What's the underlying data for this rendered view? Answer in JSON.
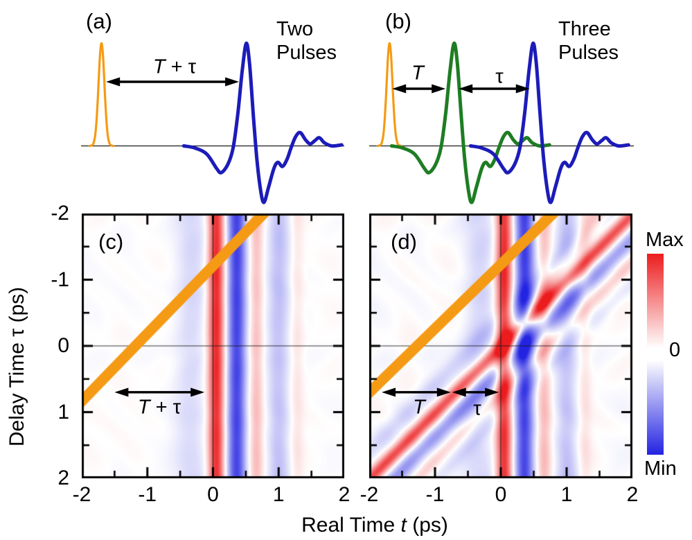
{
  "figure": {
    "panels": {
      "a": "(a)",
      "b": "(b)",
      "c": "(c)",
      "d": "(d)"
    },
    "pulse_titles": {
      "two_line1": "Two",
      "two_line2": "Pulses",
      "three_line1": "Three",
      "three_line2": "Pulses"
    },
    "labels": {
      "T": "T",
      "plus_tau": " + τ",
      "tau": "τ"
    },
    "x_axis": {
      "title_prefix": "Real Time ",
      "title_var": "t",
      "title_suffix": " (ps)",
      "ticks": [
        "-2",
        "-1",
        "0",
        "1",
        "2"
      ],
      "tick_values": [
        -2,
        -1,
        0,
        1,
        2
      ],
      "range": [
        -2,
        2
      ]
    },
    "y_axis": {
      "title_prefix": "Delay Time ",
      "title_var": "τ",
      "title_suffix": " (ps)",
      "ticks": [
        "-2",
        "-1",
        "0",
        "1",
        "2"
      ],
      "tick_values": [
        -2,
        -1,
        0,
        1,
        2
      ],
      "range": [
        -2,
        2
      ],
      "inverted": true
    },
    "colorbar": {
      "max_label": "Max",
      "zero_label": "0",
      "min_label": "Min",
      "top_color": "#ec1c1e",
      "mid_color": "#ffffff",
      "bottom_color": "#2323e2"
    },
    "accent_orange": "#f59a14"
  },
  "pulse_wavelet_shape": [
    [
      -0.95,
      0
    ],
    [
      -0.78,
      -0.02
    ],
    [
      -0.6,
      -0.08
    ],
    [
      -0.45,
      -0.22
    ],
    [
      -0.38,
      -0.26
    ],
    [
      -0.28,
      -0.18
    ],
    [
      -0.2,
      -0.02
    ],
    [
      -0.13,
      0.3
    ],
    [
      -0.06,
      0.74
    ],
    [
      0,
      1.0
    ],
    [
      0.05,
      0.8
    ],
    [
      0.11,
      0.28
    ],
    [
      0.16,
      -0.12
    ],
    [
      0.22,
      -0.44
    ],
    [
      0.27,
      -0.55
    ],
    [
      0.34,
      -0.4
    ],
    [
      0.42,
      -0.22
    ],
    [
      0.48,
      -0.16
    ],
    [
      0.55,
      -0.2
    ],
    [
      0.62,
      -0.13
    ],
    [
      0.68,
      -0.02
    ],
    [
      0.75,
      0.09
    ],
    [
      0.82,
      0.13
    ],
    [
      0.9,
      0.06
    ],
    [
      0.97,
      0.02
    ],
    [
      1.04,
      0.05
    ],
    [
      1.11,
      0.08
    ],
    [
      1.19,
      0.03
    ],
    [
      1.3,
      0.0
    ],
    [
      1.45,
      0.01
    ],
    [
      1.55,
      0
    ]
  ],
  "chart_data": [
    {
      "id": "a",
      "type": "line",
      "panel": "(a)",
      "title": "Two Pulses",
      "x_unit": "ps",
      "pulses": [
        {
          "name": "first-pulse",
          "color": "#f59a14",
          "shape": "gaussian",
          "center_ps": -1.7,
          "sigma_ps": 0.045,
          "amplitude": 1.0
        },
        {
          "name": "probe-pulse",
          "color": "#1c1cb9",
          "shape": "wavelet",
          "center_ps": 0.5,
          "amplitude": 1.0,
          "max_u": 1.49
        }
      ],
      "annotations": [
        {
          "label": "T + τ",
          "type": "double-arrow",
          "from_ps": -1.63,
          "to_ps": 0.39
        }
      ]
    },
    {
      "id": "b",
      "type": "line",
      "panel": "(b)",
      "title": "Three Pulses",
      "x_unit": "ps",
      "pulses": [
        {
          "name": "first-pulse",
          "color": "#f59a14",
          "shape": "gaussian",
          "center_ps": -1.68,
          "sigma_ps": 0.045,
          "amplitude": 1.0
        },
        {
          "name": "pump-pulse",
          "color": "#1e7d23",
          "shape": "wavelet",
          "center_ps": -0.7,
          "amplitude": 1.0,
          "max_u": 1.47
        },
        {
          "name": "probe-pulse",
          "color": "#1c1cb9",
          "shape": "wavelet",
          "center_ps": 0.5,
          "amplitude": 1.0,
          "max_u": 1.53
        }
      ],
      "annotations": [
        {
          "label": "T",
          "type": "double-arrow",
          "from_ps": -1.64,
          "to_ps": -0.83
        },
        {
          "label": "τ",
          "type": "double-arrow",
          "from_ps": -0.63,
          "to_ps": 0.45
        }
      ]
    },
    {
      "id": "c",
      "type": "heatmap",
      "panel": "(c)",
      "x_label": "Real Time t (ps)",
      "y_label": "Delay Time τ (ps)",
      "x_range": [
        -2,
        2
      ],
      "y_range": [
        -2,
        2
      ],
      "y_axis_inverted": true,
      "value_scale": {
        "max": "Max",
        "zero": "0",
        "min": "Min"
      },
      "vertical_band_lobes": [
        {
          "c": -0.33,
          "w": 0.18,
          "a": -0.17
        },
        {
          "c": 0.05,
          "w": 0.085,
          "a": 0.95
        },
        {
          "c": 0.36,
          "w": 0.1,
          "a": -0.85
        },
        {
          "c": 0.66,
          "w": 0.075,
          "a": 0.28
        },
        {
          "c": 1.0,
          "w": 0.12,
          "a": -0.28
        },
        {
          "c": 1.28,
          "w": 0.07,
          "a": 0.12
        }
      ],
      "diagonal_band_lobes": [],
      "extra_branch": null,
      "noise_amp": 0.03,
      "pump_marker_line": {
        "color": "#f59a14",
        "width_ps": 0.16,
        "p1": {
          "t": 0.92,
          "tau": -2.15
        },
        "p2": {
          "t": -2.15,
          "tau": 0.99
        }
      },
      "zero_lines": true,
      "annotations": [
        {
          "label": "T + τ",
          "type": "double-arrow",
          "tau": 0.7,
          "from_t": -1.5,
          "to_t": -0.13
        }
      ]
    },
    {
      "id": "d",
      "type": "heatmap",
      "panel": "(d)",
      "x_label": "Real Time t (ps)",
      "y_label": "Delay Time τ (ps)",
      "x_range": [
        -2,
        2
      ],
      "y_range": [
        -2,
        2
      ],
      "y_axis_inverted": true,
      "value_scale": {
        "max": "Max",
        "zero": "0",
        "min": "Min"
      },
      "vertical_band_lobes": [
        {
          "c": -0.33,
          "w": 0.18,
          "a": -0.17
        },
        {
          "c": 0.05,
          "w": 0.085,
          "a": 0.95
        },
        {
          "c": 0.36,
          "w": 0.1,
          "a": -0.85
        },
        {
          "c": 0.66,
          "w": 0.075,
          "a": 0.28
        },
        {
          "c": 1.0,
          "w": 0.12,
          "a": -0.28
        },
        {
          "c": 1.28,
          "w": 0.07,
          "a": 0.12
        }
      ],
      "diagonal_band_lobes": [
        {
          "c": -0.4,
          "w": 0.15,
          "a": -0.22
        },
        {
          "c": 0.02,
          "w": 0.1,
          "a": 0.8
        },
        {
          "c": 0.38,
          "w": 0.12,
          "a": -0.45
        },
        {
          "c": 0.73,
          "w": 0.09,
          "a": 0.2
        },
        {
          "c": 1.05,
          "w": 0.1,
          "a": -0.1
        }
      ],
      "extra_branch": {
        "t0": 0.1,
        "slope": -0.7,
        "sigma": 0.11,
        "amp": 0.38,
        "fade_start": -0.35,
        "fade_end": -0.6
      },
      "noise_amp": 0.05,
      "pump_marker_line": {
        "color": "#f59a14",
        "width_ps": 0.16,
        "p1": {
          "t": 0.95,
          "tau": -2.15
        },
        "p2": {
          "t": -2.15,
          "tau": 0.85
        }
      },
      "zero_lines": true,
      "annotations": [
        {
          "label": "T",
          "type": "double-arrow",
          "tau": 0.7,
          "from_t": -1.81,
          "to_t": -0.76
        },
        {
          "label": "τ",
          "type": "double-arrow",
          "tau": 0.7,
          "from_t": -0.74,
          "to_t": -0.03
        }
      ]
    }
  ]
}
